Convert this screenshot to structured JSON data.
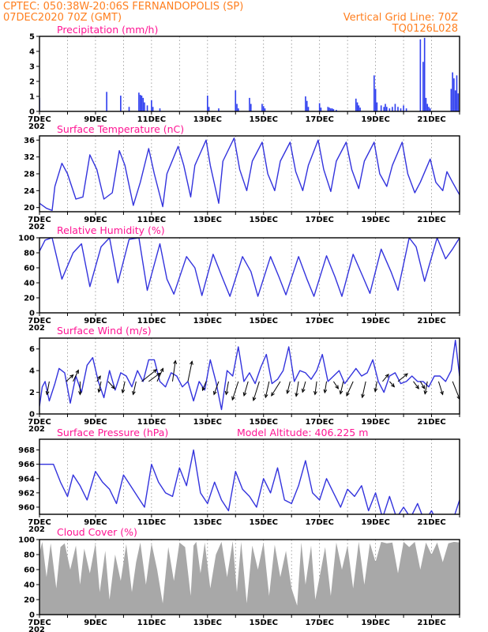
{
  "header": {
    "line1_left": "CPTEC:   050:38W-20:06S   FERNANDOPOLIS (SP)",
    "line2_left": "07DEC2020 70Z (GMT)",
    "line1_right": "Vertical Grid Line: 70Z",
    "line2_right": "TQ0126L028"
  },
  "colors": {
    "header": "#ff7f1f",
    "title": "#ff1493",
    "series": "#3333dd",
    "bars": "#2f3fef",
    "cloud": "#a8a8a8"
  },
  "x_axis": {
    "start_day": 7,
    "end_day": 22,
    "tick_labels": [
      "7DEC",
      "9DEC",
      "11DEC",
      "13DEC",
      "15DEC",
      "17DEC",
      "19DEC",
      "21DEC"
    ],
    "year_stub": "202"
  },
  "chart_data": [
    {
      "type": "bar",
      "title": "Precipitation (mm/h)",
      "ylim": [
        0,
        5
      ],
      "yticks": [
        "0",
        "1",
        "2",
        "3",
        "4",
        "5"
      ],
      "day": [
        7.0,
        9.4,
        9.9,
        10.2,
        10.55,
        10.6,
        10.65,
        10.7,
        10.75,
        10.85,
        11.0,
        11.05,
        11.3,
        13.0,
        13.05,
        13.4,
        14.0,
        14.05,
        14.1,
        14.5,
        14.55,
        14.95,
        15.0,
        15.05,
        16.5,
        16.55,
        16.6,
        17.0,
        17.05,
        17.3,
        17.35,
        17.4,
        17.45,
        17.5,
        17.6,
        18.3,
        18.35,
        18.4,
        18.45,
        18.95,
        19.0,
        19.05,
        19.2,
        19.3,
        19.35,
        19.4,
        19.5,
        19.6,
        19.7,
        19.8,
        19.9,
        20.0,
        20.1,
        20.6,
        20.7,
        20.75,
        20.8,
        20.85,
        20.9,
        20.95,
        21.7,
        21.75,
        21.8,
        21.85,
        21.9,
        21.95
      ],
      "values": [
        0.9,
        1.3,
        1.05,
        0.3,
        1.25,
        1.1,
        1.05,
        0.9,
        0.6,
        0.4,
        0.75,
        0.3,
        0.2,
        1.05,
        0.3,
        0.2,
        1.4,
        0.5,
        0.2,
        0.9,
        0.5,
        0.5,
        0.35,
        0.2,
        1.0,
        0.7,
        0.3,
        0.55,
        0.25,
        0.3,
        0.25,
        0.2,
        0.2,
        0.15,
        0.1,
        0.85,
        0.6,
        0.4,
        0.25,
        2.4,
        1.5,
        0.6,
        0.4,
        0.3,
        0.5,
        0.3,
        0.2,
        0.3,
        0.5,
        0.3,
        0.2,
        0.4,
        0.2,
        4.8,
        3.3,
        4.9,
        0.9,
        0.5,
        0.3,
        0.2,
        1.5,
        2.6,
        2.2,
        1.4,
        2.4,
        1.2
      ]
    },
    {
      "type": "line",
      "title": "Surface Temperature (nC)",
      "ylim": [
        19,
        37
      ],
      "yticks": [
        "20",
        "24",
        "28",
        "32",
        "36"
      ],
      "x": [
        7.0,
        7.25,
        7.45,
        7.55,
        7.8,
        8.0,
        8.3,
        8.55,
        8.8,
        9.05,
        9.3,
        9.6,
        9.85,
        10.05,
        10.35,
        10.6,
        10.9,
        11.1,
        11.4,
        11.55,
        11.95,
        12.15,
        12.4,
        12.55,
        12.95,
        13.1,
        13.4,
        13.55,
        13.95,
        14.15,
        14.4,
        14.6,
        14.95,
        15.15,
        15.4,
        15.6,
        15.95,
        16.15,
        16.4,
        16.6,
        16.95,
        17.15,
        17.4,
        17.6,
        17.95,
        18.15,
        18.4,
        18.6,
        18.95,
        19.15,
        19.4,
        19.6,
        19.95,
        20.15,
        20.4,
        20.6,
        20.95,
        21.15,
        21.4,
        21.55,
        21.75,
        22.0
      ],
      "y": [
        21.0,
        19.8,
        19.3,
        25.0,
        30.5,
        28.0,
        22.0,
        22.5,
        32.5,
        29.0,
        22.0,
        23.5,
        33.5,
        30.0,
        20.5,
        26.0,
        34.0,
        28.0,
        20.2,
        28.0,
        34.5,
        30.0,
        22.5,
        30.0,
        36.0,
        30.0,
        21.0,
        31.0,
        36.5,
        29.0,
        24.0,
        31.0,
        35.5,
        28.0,
        24.0,
        31.0,
        35.5,
        28.5,
        24.0,
        30.0,
        36.0,
        29.0,
        23.8,
        31.0,
        35.5,
        29.0,
        24.5,
        31.0,
        35.5,
        28.0,
        25.0,
        30.0,
        35.5,
        28.0,
        23.5,
        26.0,
        31.5,
        26.0,
        24.0,
        28.5,
        26.0,
        23.0
      ]
    },
    {
      "type": "line",
      "title": "Relative Humidity (%)",
      "ylim": [
        0,
        100
      ],
      "yticks": [
        "0",
        "20",
        "40",
        "60",
        "80",
        "100"
      ],
      "x": [
        7.0,
        7.2,
        7.45,
        7.8,
        8.2,
        8.5,
        8.8,
        9.2,
        9.5,
        9.8,
        10.2,
        10.55,
        10.85,
        11.3,
        11.55,
        11.8,
        12.25,
        12.55,
        12.8,
        13.2,
        13.55,
        13.8,
        14.25,
        14.55,
        14.8,
        15.25,
        15.55,
        15.8,
        16.25,
        16.55,
        16.8,
        17.25,
        17.55,
        17.8,
        18.2,
        18.55,
        18.8,
        19.2,
        19.55,
        19.8,
        20.2,
        20.45,
        20.75,
        21.2,
        21.5,
        21.75,
        22.0
      ],
      "y": [
        82,
        97,
        100,
        45,
        80,
        92,
        35,
        88,
        100,
        40,
        98,
        100,
        30,
        92,
        45,
        25,
        75,
        60,
        23,
        78,
        45,
        22,
        75,
        55,
        22,
        75,
        48,
        24,
        75,
        45,
        22,
        76,
        48,
        22,
        78,
        48,
        26,
        85,
        55,
        30,
        100,
        88,
        42,
        100,
        72,
        85,
        100
      ]
    },
    {
      "type": "line",
      "title": "Surface Wind (m/s)",
      "ylim": [
        0,
        7
      ],
      "yticks": [
        "0",
        "2",
        "4",
        "6"
      ],
      "x": [
        7.0,
        7.1,
        7.2,
        7.35,
        7.55,
        7.7,
        7.9,
        8.1,
        8.3,
        8.5,
        8.7,
        8.9,
        9.1,
        9.3,
        9.5,
        9.7,
        9.9,
        10.1,
        10.3,
        10.5,
        10.7,
        10.9,
        11.1,
        11.3,
        11.5,
        11.7,
        11.9,
        12.1,
        12.3,
        12.5,
        12.7,
        12.9,
        13.1,
        13.3,
        13.5,
        13.7,
        13.9,
        14.1,
        14.3,
        14.5,
        14.7,
        14.9,
        15.1,
        15.3,
        15.5,
        15.7,
        15.9,
        16.1,
        16.3,
        16.5,
        16.7,
        16.9,
        17.1,
        17.3,
        17.5,
        17.7,
        17.9,
        18.1,
        18.3,
        18.5,
        18.7,
        18.9,
        19.1,
        19.3,
        19.5,
        19.7,
        19.9,
        20.1,
        20.3,
        20.5,
        20.7,
        20.9,
        21.1,
        21.3,
        21.5,
        21.7,
        21.85,
        22.0
      ],
      "y": [
        0.7,
        2.5,
        3.0,
        1.2,
        2.8,
        4.2,
        3.8,
        1.0,
        3.5,
        2.0,
        4.5,
        5.2,
        3.0,
        1.5,
        4.0,
        2.2,
        3.8,
        3.5,
        2.5,
        4.0,
        3.0,
        5.0,
        5.0,
        3.0,
        2.5,
        3.8,
        3.5,
        2.5,
        3.0,
        1.2,
        3.0,
        2.2,
        5.0,
        3.0,
        0.4,
        4.0,
        3.5,
        6.2,
        3.0,
        3.8,
        2.8,
        4.3,
        5.5,
        2.8,
        3.2,
        4.0,
        6.2,
        3.0,
        4.0,
        3.8,
        3.2,
        4.0,
        5.5,
        3.0,
        3.5,
        4.0,
        2.8,
        3.5,
        4.2,
        3.5,
        3.8,
        5.0,
        3.0,
        2.0,
        3.5,
        3.8,
        2.8,
        3.0,
        3.5,
        3.0,
        3.0,
        2.5,
        3.5,
        3.5,
        3.0,
        4.0,
        6.8,
        3.5
      ],
      "vectors": {
        "day": [
          7.35,
          7.95,
          8.2,
          8.45,
          9.05,
          9.2,
          9.45,
          10.05,
          10.45,
          10.65,
          10.9,
          11.2,
          11.75,
          12.3,
          12.95,
          13.4,
          13.75,
          14.1,
          14.45,
          14.85,
          15.2,
          15.6,
          15.95,
          16.25,
          16.5,
          16.9,
          17.25,
          17.5,
          17.85,
          18.2,
          18.65,
          19.05,
          19.25,
          19.5,
          19.8,
          20.35,
          20.6,
          20.85,
          21.25,
          21.75,
          22.0
        ],
        "u": [
          -0.4,
          1.2,
          0.9,
          0.0,
          0.6,
          -0.4,
          1.1,
          -0.4,
          -0.5,
          2.5,
          1.9,
          1.0,
          0.5,
          0.7,
          -0.6,
          -0.8,
          -0.4,
          -1.0,
          -0.7,
          -1.0,
          -0.6,
          -1.5,
          -0.5,
          -0.4,
          -0.5,
          -0.3,
          -0.3,
          0.8,
          -0.5,
          -1.1,
          -0.6,
          -0.3,
          1.0,
          0.8,
          1.6,
          0.9,
          0.7,
          -0.4,
          0.7,
          1.2,
          0.3
        ],
        "v": [
          -2.2,
          1.1,
          1.9,
          -2.2,
          0.9,
          -1.8,
          -1.2,
          -1.9,
          -2.2,
          2.0,
          1.4,
          2.2,
          3.5,
          3.4,
          -1.5,
          -2.2,
          -2.2,
          -3.1,
          -2.4,
          -3.2,
          -2.7,
          -2.4,
          -2.0,
          -2.5,
          -1.8,
          -2.2,
          -1.9,
          -1.2,
          -2.1,
          -2.4,
          -2.7,
          -1.7,
          1.2,
          -0.9,
          1.3,
          -1.2,
          -1.2,
          -2.1,
          -2.2,
          -3.0,
          -2.0
        ]
      }
    },
    {
      "type": "line",
      "title": "Surface Pressure (hPa)",
      "subtitle": "Model Altitude: 406.225 m",
      "ylim": [
        959.0,
        969.5
      ],
      "yticks": [
        "960",
        "962",
        "964",
        "966",
        "968"
      ],
      "x": [
        7.0,
        7.25,
        7.5,
        7.75,
        8.0,
        8.2,
        8.45,
        8.7,
        9.0,
        9.25,
        9.5,
        9.75,
        10.0,
        10.25,
        10.5,
        10.75,
        11.0,
        11.25,
        11.5,
        11.75,
        12.0,
        12.25,
        12.5,
        12.75,
        13.0,
        13.25,
        13.5,
        13.75,
        14.0,
        14.25,
        14.5,
        14.75,
        15.0,
        15.25,
        15.5,
        15.75,
        16.0,
        16.25,
        16.5,
        16.75,
        17.0,
        17.25,
        17.5,
        17.75,
        18.0,
        18.25,
        18.5,
        18.75,
        19.0,
        19.25,
        19.5,
        19.75,
        20.0,
        20.25,
        20.5,
        20.75,
        21.0,
        21.25,
        21.5,
        21.75,
        22.0
      ],
      "y": [
        966.0,
        966.0,
        966.0,
        963.5,
        961.5,
        964.5,
        963.0,
        961.0,
        965.0,
        963.5,
        962.5,
        960.5,
        964.5,
        963.0,
        961.5,
        960.0,
        966.0,
        963.5,
        962.0,
        961.5,
        965.5,
        963.0,
        968.0,
        962.0,
        960.5,
        963.5,
        961.0,
        959.5,
        965.0,
        962.5,
        961.5,
        960.0,
        964.0,
        962.0,
        965.5,
        961.0,
        960.5,
        963.0,
        966.5,
        962.0,
        961.0,
        964.0,
        962.0,
        960.0,
        962.5,
        961.5,
        963.0,
        959.5,
        962.0,
        958.5,
        961.5,
        958.5,
        960.0,
        958.5,
        960.5,
        958.0,
        959.5,
        957.5,
        958.5,
        958.0,
        961.0
      ]
    },
    {
      "type": "area",
      "title": "Cloud Cover (%)",
      "ylim": [
        0,
        100
      ],
      "yticks": [
        "0",
        "20",
        "40",
        "60",
        "80",
        "100"
      ],
      "x": [
        7.0,
        7.1,
        7.25,
        7.4,
        7.6,
        7.75,
        7.9,
        8.1,
        8.3,
        8.45,
        8.6,
        8.8,
        9.0,
        9.15,
        9.35,
        9.5,
        9.7,
        9.9,
        10.1,
        10.3,
        10.45,
        10.6,
        10.8,
        11.0,
        11.2,
        11.4,
        11.6,
        11.8,
        12.0,
        12.2,
        12.4,
        12.5,
        12.6,
        12.75,
        12.9,
        13.1,
        13.3,
        13.5,
        13.7,
        13.9,
        14.05,
        14.2,
        14.4,
        14.6,
        14.8,
        15.0,
        15.2,
        15.4,
        15.6,
        15.8,
        16.0,
        16.2,
        16.35,
        16.5,
        16.7,
        16.85,
        17.0,
        17.2,
        17.4,
        17.6,
        17.8,
        18.0,
        18.2,
        18.4,
        18.6,
        18.8,
        19.0,
        19.2,
        19.4,
        19.6,
        19.8,
        20.0,
        20.2,
        20.4,
        20.6,
        20.8,
        21.0,
        21.2,
        21.4,
        21.6,
        21.8,
        22.0
      ],
      "y": [
        82,
        97,
        50,
        95,
        35,
        90,
        95,
        60,
        92,
        40,
        88,
        55,
        95,
        30,
        85,
        20,
        80,
        45,
        94,
        30,
        70,
        96,
        40,
        95,
        60,
        15,
        90,
        45,
        96,
        90,
        25,
        92,
        97,
        55,
        96,
        35,
        80,
        97,
        50,
        98,
        30,
        97,
        15,
        92,
        60,
        96,
        25,
        93,
        50,
        85,
        35,
        12,
        96,
        40,
        92,
        20,
        50,
        90,
        25,
        96,
        60,
        92,
        35,
        97,
        40,
        95,
        70,
        97,
        95,
        96,
        55,
        97,
        90,
        97,
        60,
        96,
        80,
        96,
        70,
        95,
        97,
        96
      ]
    }
  ]
}
